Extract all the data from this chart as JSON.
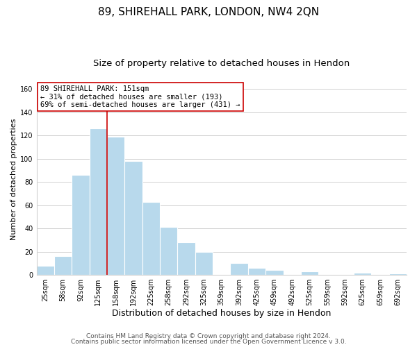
{
  "title": "89, SHIREHALL PARK, LONDON, NW4 2QN",
  "subtitle": "Size of property relative to detached houses in Hendon",
  "xlabel": "Distribution of detached houses by size in Hendon",
  "ylabel": "Number of detached properties",
  "bar_color": "#b8d9ec",
  "bar_edge_color": "#b8d9ec",
  "grid_color": "#d0d0d0",
  "vline_color": "#cc0000",
  "annotation_box_text": "89 SHIREHALL PARK: 151sqm\n← 31% of detached houses are smaller (193)\n69% of semi-detached houses are larger (431) →",
  "annotation_box_color": "#ffffff",
  "annotation_box_edge_color": "#cc0000",
  "annotation_fontsize": 7.5,
  "categories": [
    "25sqm",
    "58sqm",
    "92sqm",
    "125sqm",
    "158sqm",
    "192sqm",
    "225sqm",
    "258sqm",
    "292sqm",
    "325sqm",
    "359sqm",
    "392sqm",
    "425sqm",
    "459sqm",
    "492sqm",
    "525sqm",
    "559sqm",
    "592sqm",
    "625sqm",
    "659sqm",
    "692sqm"
  ],
  "values": [
    8,
    16,
    86,
    126,
    119,
    98,
    63,
    41,
    28,
    20,
    0,
    10,
    6,
    4,
    0,
    3,
    0,
    0,
    2,
    0,
    1
  ],
  "vline_pos": 3.5,
  "ylim": [
    0,
    165
  ],
  "yticks": [
    0,
    20,
    40,
    60,
    80,
    100,
    120,
    140,
    160
  ],
  "footer1": "Contains HM Land Registry data © Crown copyright and database right 2024.",
  "footer2": "Contains public sector information licensed under the Open Government Licence v 3.0.",
  "background_color": "#ffffff",
  "title_fontsize": 11,
  "subtitle_fontsize": 9.5,
  "xlabel_fontsize": 9,
  "ylabel_fontsize": 8,
  "tick_fontsize": 7,
  "footer_fontsize": 6.5
}
